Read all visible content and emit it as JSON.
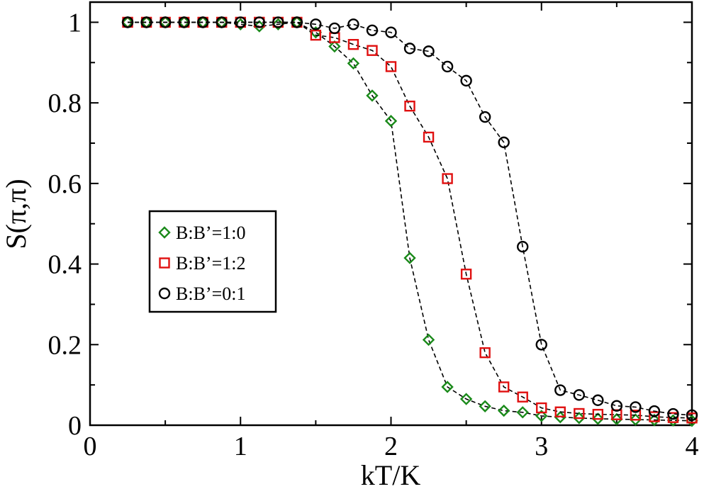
{
  "chart_data": {
    "type": "scatter",
    "xlabel": "kT/K",
    "ylabel": "S(π,π)",
    "xlim": [
      0,
      4
    ],
    "ylim": [
      0,
      1.05
    ],
    "xticks": [
      {
        "value": 0,
        "label": "0"
      },
      {
        "value": 1,
        "label": "1"
      },
      {
        "value": 2,
        "label": "2"
      },
      {
        "value": 3,
        "label": "3"
      },
      {
        "value": 4,
        "label": "4"
      }
    ],
    "yticks": [
      {
        "value": 0,
        "label": "0"
      },
      {
        "value": 0.2,
        "label": "0.2"
      },
      {
        "value": 0.4,
        "label": "0.4"
      },
      {
        "value": 0.6,
        "label": "0.6"
      },
      {
        "value": 0.8,
        "label": "0.8"
      },
      {
        "value": 1,
        "label": "1"
      }
    ],
    "grid": false,
    "legend_position": "middle-left",
    "series": [
      {
        "name": "B:B’=1:0",
        "marker": "diamond",
        "color": "#1a8a1a",
        "x": [
          0.25,
          0.375,
          0.5,
          0.625,
          0.75,
          0.875,
          1.0,
          1.125,
          1.25,
          1.375,
          1.5,
          1.625,
          1.75,
          1.875,
          2.0,
          2.125,
          2.25,
          2.375,
          2.5,
          2.625,
          2.75,
          2.875,
          3.0,
          3.125,
          3.25,
          3.375,
          3.5,
          3.625,
          3.75,
          3.875,
          4.0
        ],
        "y": [
          1.0,
          1.0,
          1.0,
          1.0,
          1.0,
          1.0,
          0.995,
          0.99,
          0.995,
          1.0,
          0.975,
          0.94,
          0.898,
          0.818,
          0.755,
          0.415,
          0.212,
          0.095,
          0.065,
          0.047,
          0.036,
          0.032,
          0.023,
          0.02,
          0.018,
          0.016,
          0.015,
          0.014,
          0.013,
          0.012,
          0.011
        ]
      },
      {
        "name": "B:B’=1:2",
        "marker": "square",
        "color": "#e01010",
        "x": [
          0.25,
          0.375,
          0.5,
          0.625,
          0.75,
          0.875,
          1.0,
          1.125,
          1.25,
          1.375,
          1.5,
          1.625,
          1.75,
          1.875,
          2.0,
          2.125,
          2.25,
          2.375,
          2.5,
          2.625,
          2.75,
          2.875,
          3.0,
          3.125,
          3.25,
          3.375,
          3.5,
          3.625,
          3.75,
          3.875,
          4.0
        ],
        "y": [
          1.0,
          1.0,
          1.0,
          1.0,
          1.0,
          1.0,
          1.0,
          1.0,
          1.0,
          1.0,
          0.968,
          0.962,
          0.945,
          0.93,
          0.89,
          0.792,
          0.715,
          0.612,
          0.375,
          0.18,
          0.095,
          0.07,
          0.043,
          0.033,
          0.029,
          0.027,
          0.026,
          0.025,
          0.021,
          0.019,
          0.018
        ]
      },
      {
        "name": "B:B’=0:1",
        "marker": "circle",
        "color": "#000000",
        "x": [
          0.25,
          0.375,
          0.5,
          0.625,
          0.75,
          0.875,
          1.0,
          1.125,
          1.25,
          1.375,
          1.5,
          1.625,
          1.75,
          1.875,
          2.0,
          2.125,
          2.25,
          2.375,
          2.5,
          2.625,
          2.75,
          2.875,
          3.0,
          3.125,
          3.25,
          3.375,
          3.5,
          3.625,
          3.75,
          3.875,
          4.0
        ],
        "y": [
          1.0,
          1.0,
          1.0,
          1.0,
          1.0,
          1.0,
          1.0,
          1.0,
          1.0,
          1.0,
          0.995,
          0.985,
          0.995,
          0.98,
          0.975,
          0.935,
          0.928,
          0.89,
          0.855,
          0.765,
          0.702,
          0.443,
          0.2,
          0.087,
          0.075,
          0.062,
          0.048,
          0.045,
          0.035,
          0.028,
          0.025
        ]
      }
    ]
  }
}
